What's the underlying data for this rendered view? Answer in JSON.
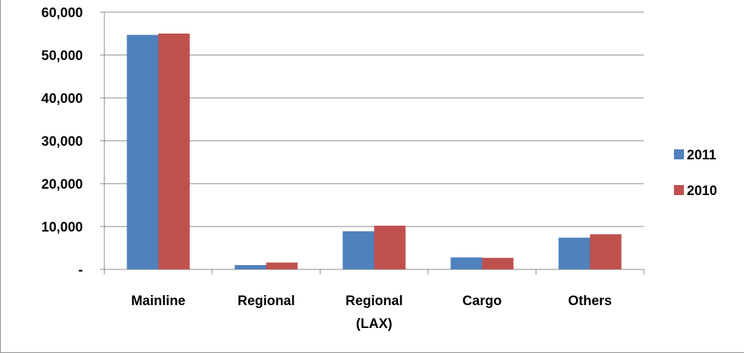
{
  "chart_data": {
    "type": "bar",
    "categories": [
      [
        "Mainline"
      ],
      [
        "Regional"
      ],
      [
        "Regional",
        "(LAX)"
      ],
      [
        "Cargo"
      ],
      [
        "Others"
      ]
    ],
    "series": [
      {
        "name": "2011",
        "color": "#4f81bd",
        "values": [
          54700,
          1000,
          8900,
          2800,
          7400
        ]
      },
      {
        "name": "2010",
        "color": "#c0504d",
        "values": [
          55000,
          1600,
          10200,
          2700,
          8200
        ]
      }
    ],
    "ylim": [
      0,
      60000
    ],
    "yticks": [
      {
        "value": 0,
        "label": "-"
      },
      {
        "value": 10000,
        "label": "10,000"
      },
      {
        "value": 20000,
        "label": "20,000"
      },
      {
        "value": 30000,
        "label": "30,000"
      },
      {
        "value": 40000,
        "label": "40,000"
      },
      {
        "value": 50000,
        "label": "50,000"
      },
      {
        "value": 60000,
        "label": "60,000"
      }
    ],
    "grid": true,
    "legend": "right",
    "title": "",
    "xlabel": "",
    "ylabel": ""
  }
}
